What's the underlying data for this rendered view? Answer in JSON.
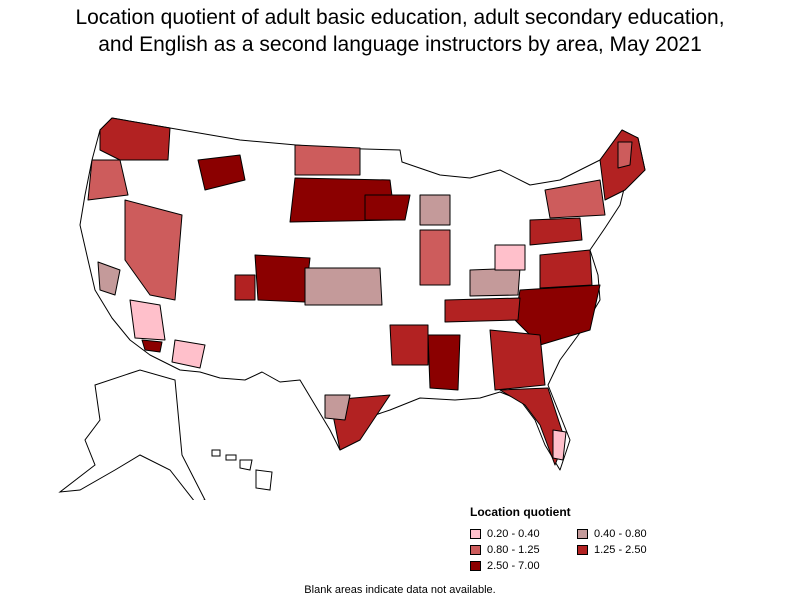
{
  "title": {
    "line1": "Location quotient of adult basic education, adult secondary education,",
    "line2": "and English as a second language instructors by area, May 2021"
  },
  "legend": {
    "title": "Location quotient",
    "items": [
      {
        "label": "0.20 - 0.40",
        "color": "#ffc0cb"
      },
      {
        "label": "0.40 - 0.80",
        "color": "#c49a9a"
      },
      {
        "label": "0.80 - 1.25",
        "color": "#cd5c5c"
      },
      {
        "label": "1.25 - 2.50",
        "color": "#b22222"
      },
      {
        "label": "2.50 - 7.00",
        "color": "#8b0000"
      }
    ]
  },
  "note": "Blank areas indicate data not available."
}
